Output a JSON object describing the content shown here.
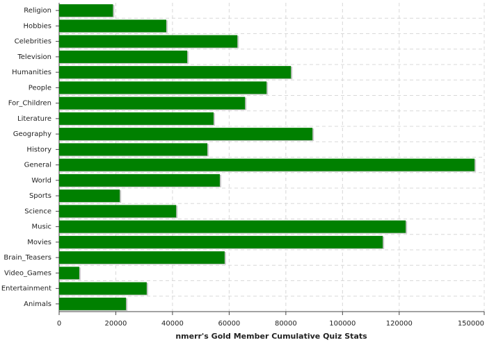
{
  "chart_data": {
    "type": "bar",
    "orientation": "horizontal",
    "title": "nmerr's Gold Member Cumulative Quiz Stats",
    "categories": [
      "Religion",
      "Hobbies",
      "Celebrities",
      "Television",
      "Humanities",
      "People",
      "For_Children",
      "Literature",
      "Geography",
      "History",
      "General",
      "World",
      "Sports",
      "Science",
      "Music",
      "Movies",
      "Brain_Teasers",
      "Video_Games",
      "Entertainment",
      "Animals"
    ],
    "values": [
      19000,
      37800,
      62900,
      45200,
      81800,
      73200,
      65600,
      54500,
      89400,
      52300,
      146600,
      56700,
      21400,
      41300,
      122300,
      114200,
      58400,
      7100,
      30900,
      23600
    ],
    "color": "#008000",
    "xlim": [
      0,
      150000
    ],
    "xticks": [
      0,
      20000,
      40000,
      60000,
      80000,
      100000,
      120000,
      150000
    ],
    "grid": true
  }
}
